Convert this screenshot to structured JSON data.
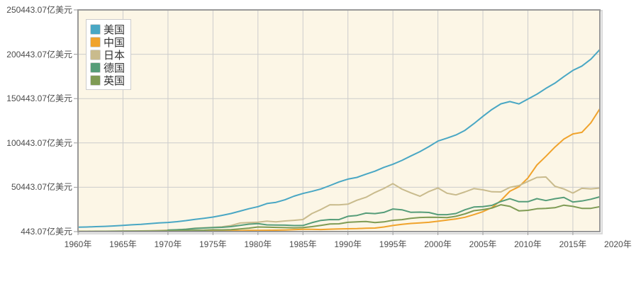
{
  "chart_data": {
    "type": "line",
    "title": "",
    "unit": "亿美元",
    "legend_position": "top-left-inside",
    "grid": true,
    "x_years": [
      1960,
      1961,
      1962,
      1963,
      1964,
      1965,
      1966,
      1967,
      1968,
      1969,
      1970,
      1971,
      1972,
      1973,
      1974,
      1975,
      1976,
      1977,
      1978,
      1979,
      1980,
      1981,
      1982,
      1983,
      1984,
      1985,
      1986,
      1987,
      1988,
      1989,
      1990,
      1991,
      1992,
      1993,
      1994,
      1995,
      1996,
      1997,
      1998,
      1999,
      2000,
      2001,
      2002,
      2003,
      2004,
      2005,
      2006,
      2007,
      2008,
      2009,
      2010,
      2011,
      2012,
      2013,
      2014,
      2015,
      2016,
      2017,
      2018
    ],
    "x_axis": {
      "ticks": [
        {
          "year": 1960,
          "label": "1960年"
        },
        {
          "year": 1965,
          "label": "1965年"
        },
        {
          "year": 1970,
          "label": "1970年"
        },
        {
          "year": 1975,
          "label": "1975年"
        },
        {
          "year": 1980,
          "label": "1980年"
        },
        {
          "year": 1985,
          "label": "1985年"
        },
        {
          "year": 1990,
          "label": "1990年"
        },
        {
          "year": 1995,
          "label": "1995年"
        },
        {
          "year": 2000,
          "label": "2000年"
        },
        {
          "year": 2005,
          "label": "2005年"
        },
        {
          "year": 2010,
          "label": "2010年"
        },
        {
          "year": 2015,
          "label": "2015年"
        },
        {
          "year": 2020,
          "label": "2020年"
        }
      ],
      "range": [
        1960,
        2018
      ]
    },
    "y_axis": {
      "min": 443.07,
      "max": 250443.07,
      "ticks": [
        {
          "value": 443.07,
          "label": "443.07亿美元"
        },
        {
          "value": 50443.07,
          "label": "50443.07亿美元"
        },
        {
          "value": 100443.07,
          "label": "100443.07亿美元"
        },
        {
          "value": 150443.07,
          "label": "150443.07亿美元"
        },
        {
          "value": 200443.07,
          "label": "200443.07亿美元"
        },
        {
          "value": 250443.07,
          "label": "250443.07亿美元"
        }
      ]
    },
    "series": [
      {
        "key": "usa",
        "name": "美国",
        "color": "#49A7C4",
        "values": [
          5433,
          5633,
          6051,
          6386,
          6858,
          7437,
          8150,
          8617,
          9425,
          10199,
          10733,
          11649,
          12791,
          14254,
          15452,
          16849,
          18734,
          20822,
          23516,
          26273,
          28573,
          32070,
          33438,
          36340,
          40376,
          43390,
          45796,
          48552,
          52364,
          56416,
          59631,
          61581,
          65203,
          68586,
          72872,
          76397,
          80731,
          85776,
          90628,
          96312,
          102523,
          105818,
          109364,
          114582,
          122137,
          130366,
          138146,
          144519,
          147128,
          144489,
          149921,
          155426,
          161970,
          167848,
          175217,
          182193,
          187072,
          194854,
          205802
        ]
      },
      {
        "key": "china",
        "name": "中国",
        "color": "#F0A32C",
        "values": [
          597,
          501,
          472,
          507,
          597,
          704,
          767,
          729,
          709,
          797,
          926,
          998,
          1137,
          1385,
          1442,
          1634,
          1539,
          1749,
          1495,
          1783,
          1911,
          1959,
          2051,
          2307,
          2599,
          3095,
          3008,
          2729,
          3123,
          3478,
          3609,
          3834,
          4269,
          4447,
          5643,
          7345,
          8637,
          9616,
          10290,
          10940,
          12113,
          13394,
          14706,
          16603,
          19553,
          22860,
          27521,
          35503,
          45943,
          51017,
          60872,
          75515,
          85322,
          95704,
          104757,
          110616,
          112333,
          123104,
          138948
        ]
      },
      {
        "key": "japan",
        "name": "日本",
        "color": "#C9BB8D",
        "values": [
          443,
          535,
          607,
          695,
          817,
          910,
          1056,
          1238,
          1466,
          1722,
          2126,
          2403,
          3180,
          4321,
          4796,
          5215,
          5862,
          7211,
          10136,
          10550,
          11054,
          12189,
          11346,
          12433,
          13182,
          13989,
          20785,
          25326,
          30717,
          30549,
          31329,
          35842,
          39081,
          44541,
          49072,
          54491,
          48337,
          44147,
          40325,
          45621,
          49683,
          43747,
          41829,
          45196,
          48931,
          47554,
          45304,
          45153,
          50379,
          52314,
          57001,
          61575,
          62032,
          51557,
          48504,
          43895,
          49267,
          48597,
          49545
        ]
      },
      {
        "key": "germany",
        "name": "德国",
        "color": "#569D79",
        "values": [
          null,
          null,
          null,
          null,
          null,
          null,
          null,
          null,
          null,
          null,
          2159,
          2490,
          2987,
          3975,
          4453,
          4899,
          5196,
          6014,
          7425,
          8816,
          9503,
          8004,
          7758,
          7702,
          7250,
          7325,
          10470,
          13065,
          14017,
          13936,
          17717,
          18689,
          21316,
          20713,
          22051,
          25916,
          25035,
          22187,
          22432,
          21999,
          19496,
          19506,
          20791,
          25057,
          28196,
          28614,
          30024,
          34399,
          37524,
          34180,
          34171,
          37577,
          35439,
          37525,
          38987,
          33773,
          34952,
          36932,
          39638
        ]
      },
      {
        "key": "uk",
        "name": "英国",
        "color": "#7F9B54",
        "values": [
          732,
          777,
          812,
          866,
          944,
          1012,
          1071,
          1112,
          1047,
          1127,
          1307,
          1481,
          1696,
          1925,
          2061,
          2418,
          2326,
          2631,
          3359,
          4389,
          5649,
          5408,
          5150,
          4898,
          4615,
          4893,
          6010,
          7452,
          9101,
          9268,
          10932,
          11426,
          11797,
          10613,
          11405,
          13206,
          13941,
          15382,
          16316,
          16653,
          16479,
          16215,
          17680,
          20384,
          23989,
          25207,
          26926,
          30744,
          28906,
          23828,
          24412,
          26197,
          26621,
          27398,
          30228,
          28856,
          26610,
          26662,
          28550
        ]
      }
    ],
    "colors": {
      "plot_background": "#FCF6E6",
      "gridline": "#CCCCCC",
      "axis_border": "#999999",
      "axis_shadow": "#D8D8D8",
      "tick": "#999999",
      "label_text": "#4D4D4D",
      "legend_text": "#333333",
      "legend_border": "#CCCCCC",
      "legend_background": "#FFFFFF"
    }
  }
}
